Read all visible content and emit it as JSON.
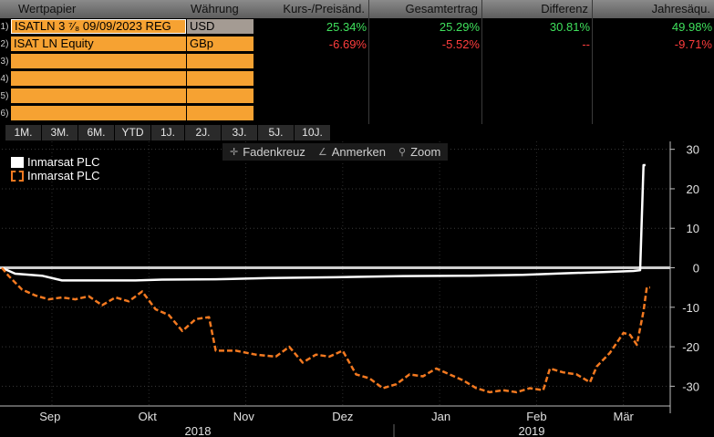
{
  "table": {
    "headers": {
      "security": "Wertpapier",
      "currency": "Währung",
      "price_change": "Kurs-/Preisänd.",
      "total_return": "Gesamtertrag",
      "difference": "Differenz",
      "annualized": "Jahresäqu."
    },
    "rows": [
      {
        "num": "1)",
        "security": "ISATLN 3 ⁷⁄₈ 09/09/2023 REG",
        "currency": "USD",
        "price_change": "25.34%",
        "total_return": "25.29%",
        "difference": "30.81%",
        "annualized": "49.98%"
      },
      {
        "num": "2)",
        "security": "ISAT LN Equity",
        "currency": "GBp",
        "price_change": "-6.69%",
        "total_return": "-5.52%",
        "difference": "--",
        "annualized": "-9.71%"
      },
      {
        "num": "3)",
        "security": "",
        "currency": "",
        "price_change": "",
        "total_return": "",
        "difference": "",
        "annualized": ""
      },
      {
        "num": "4)",
        "security": "",
        "currency": "",
        "price_change": "",
        "total_return": "",
        "difference": "",
        "annualized": ""
      },
      {
        "num": "5)",
        "security": "",
        "currency": "",
        "price_change": "",
        "total_return": "",
        "difference": "",
        "annualized": ""
      },
      {
        "num": "6)",
        "security": "",
        "currency": "",
        "price_change": "",
        "total_return": "",
        "difference": "",
        "annualized": ""
      }
    ]
  },
  "periods": [
    "1M.",
    "3M.",
    "6M.",
    "YTD",
    "1J.",
    "2J.",
    "3J.",
    "5J.",
    "10J."
  ],
  "toolbar": {
    "crosshair": "Fadenkreuz",
    "annotate": "Anmerken",
    "zoom": "Zoom",
    "crosshair_icon": "crosshair-icon",
    "annotate_icon": "pencil-icon",
    "zoom_icon": "magnifier-icon"
  },
  "colors": {
    "orange": "#f37920",
    "positive": "#3fe05c",
    "negative": "#ff3d3d",
    "row_fill": "#f6a232"
  },
  "chart_data": {
    "type": "line",
    "ylim": [
      -35,
      32
    ],
    "y_ticks": [
      30,
      20,
      10,
      0,
      -10,
      -20,
      -30
    ],
    "y_tick_labels": [
      "30",
      "20",
      "10",
      "0",
      "-10",
      "-20",
      "-30"
    ],
    "x_month_labels": [
      "Sep",
      "Okt",
      "Nov",
      "Dez",
      "Jan",
      "Feb",
      "Mär"
    ],
    "x_year_labels": [
      "2018",
      "2019"
    ],
    "legend_position": "top-left",
    "series": [
      {
        "name": "Inmarsat PLC",
        "color": "#ffffff",
        "style": "solid",
        "points": [
          [
            0,
            0
          ],
          [
            0.02,
            -1.5
          ],
          [
            0.06,
            -2
          ],
          [
            0.09,
            -3.2
          ],
          [
            0.2,
            -3.2
          ],
          [
            0.24,
            -3
          ],
          [
            0.32,
            -2.9
          ],
          [
            0.4,
            -2.6
          ],
          [
            0.5,
            -2.4
          ],
          [
            0.6,
            -2.1
          ],
          [
            0.7,
            -2.0
          ],
          [
            0.78,
            -1.8
          ],
          [
            0.84,
            -1.4
          ],
          [
            0.9,
            -1.1
          ],
          [
            0.945,
            -0.8
          ],
          [
            0.955,
            -0.6
          ],
          [
            0.96,
            26
          ],
          [
            0.963,
            26
          ]
        ]
      },
      {
        "name": "Inmarsat PLC",
        "color": "#f37920",
        "style": "dashed",
        "points": [
          [
            0,
            0
          ],
          [
            0.01,
            -2
          ],
          [
            0.03,
            -5.5
          ],
          [
            0.05,
            -7
          ],
          [
            0.07,
            -8
          ],
          [
            0.09,
            -7.5
          ],
          [
            0.11,
            -8
          ],
          [
            0.13,
            -7.2
          ],
          [
            0.15,
            -9.5
          ],
          [
            0.17,
            -7.5
          ],
          [
            0.19,
            -8.5
          ],
          [
            0.21,
            -6
          ],
          [
            0.23,
            -10.5
          ],
          [
            0.25,
            -12
          ],
          [
            0.27,
            -16
          ],
          [
            0.29,
            -13
          ],
          [
            0.31,
            -12.5
          ],
          [
            0.32,
            -21
          ],
          [
            0.35,
            -21
          ],
          [
            0.38,
            -22
          ],
          [
            0.41,
            -22.5
          ],
          [
            0.43,
            -20
          ],
          [
            0.45,
            -24
          ],
          [
            0.47,
            -22
          ],
          [
            0.49,
            -22.5
          ],
          [
            0.51,
            -21
          ],
          [
            0.53,
            -27
          ],
          [
            0.55,
            -28
          ],
          [
            0.57,
            -30.5
          ],
          [
            0.59,
            -29.5
          ],
          [
            0.61,
            -27
          ],
          [
            0.63,
            -27.5
          ],
          [
            0.65,
            -25.5
          ],
          [
            0.67,
            -27
          ],
          [
            0.69,
            -28.5
          ],
          [
            0.71,
            -30.5
          ],
          [
            0.73,
            -31.5
          ],
          [
            0.75,
            -31
          ],
          [
            0.77,
            -31.5
          ],
          [
            0.79,
            -30.5
          ],
          [
            0.81,
            -31
          ],
          [
            0.82,
            -25.5
          ],
          [
            0.84,
            -26.5
          ],
          [
            0.86,
            -27
          ],
          [
            0.88,
            -29
          ],
          [
            0.89,
            -25
          ],
          [
            0.91,
            -21.5
          ],
          [
            0.93,
            -16.5
          ],
          [
            0.94,
            -17
          ],
          [
            0.95,
            -19.5
          ],
          [
            0.96,
            -11
          ],
          [
            0.965,
            -5
          ],
          [
            0.97,
            -5
          ]
        ]
      }
    ]
  }
}
